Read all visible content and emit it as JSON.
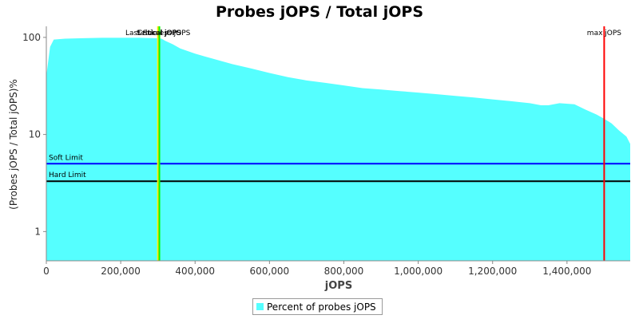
{
  "chart_data": {
    "type": "area",
    "title": "Probes jOPS / Total jOPS",
    "xlabel": "jOPS",
    "ylabel": "(Probes jOPS / Total jOPS)%",
    "y_scale": "log",
    "xlim": [
      0,
      1570000
    ],
    "ylim": [
      0.5,
      130
    ],
    "x_ticks": [
      0,
      200000,
      400000,
      600000,
      800000,
      1000000,
      1200000,
      1400000
    ],
    "x_tick_labels": [
      "0",
      "200,000",
      "400,000",
      "600,000",
      "800,000",
      "1,000,000",
      "1,200,000",
      "1,400,000"
    ],
    "y_ticks": [
      1,
      10,
      100
    ],
    "y_tick_labels": [
      "1",
      "10",
      "100"
    ],
    "grid": false,
    "legend_position": "bottom",
    "series": [
      {
        "name": "Percent of probes jOPS",
        "color": "#55ffff",
        "x": [
          0,
          10000,
          20000,
          50000,
          100000,
          150000,
          200000,
          250000,
          290000,
          300000,
          310000,
          320000,
          340000,
          360000,
          400000,
          450000,
          500000,
          550000,
          600000,
          650000,
          700000,
          750000,
          800000,
          850000,
          900000,
          950000,
          1000000,
          1050000,
          1100000,
          1150000,
          1200000,
          1250000,
          1300000,
          1330000,
          1350000,
          1380000,
          1420000,
          1450000,
          1480000,
          1500000,
          1520000,
          1540000,
          1560000,
          1570000
        ],
        "y": [
          40,
          80,
          95,
          97,
          98,
          99,
          99,
          99,
          98,
          98,
          97,
          92,
          85,
          77,
          68,
          60,
          53,
          48,
          43,
          39,
          36,
          34,
          32,
          30,
          29,
          28,
          27,
          26,
          25,
          24,
          23,
          22,
          21,
          20,
          20,
          21,
          20.5,
          18,
          16,
          14.5,
          13,
          11,
          9.5,
          8
        ]
      }
    ],
    "annotations": [
      {
        "label": "Last Success jOPS",
        "x": 300000,
        "color": "#ffff00"
      },
      {
        "label": "Settled jOPS",
        "x": 302000,
        "color": "#ffc800"
      },
      {
        "label": "Critical jOPS",
        "x": 304000,
        "color": "#00ff00"
      },
      {
        "label": "max jOPS",
        "x": 1500000,
        "color": "#ff0000"
      }
    ],
    "limits": [
      {
        "label": "Soft Limit",
        "y": 5,
        "color": "#0000ff"
      },
      {
        "label": "Hard Limit",
        "y": 3.3,
        "color": "#000000"
      }
    ]
  }
}
